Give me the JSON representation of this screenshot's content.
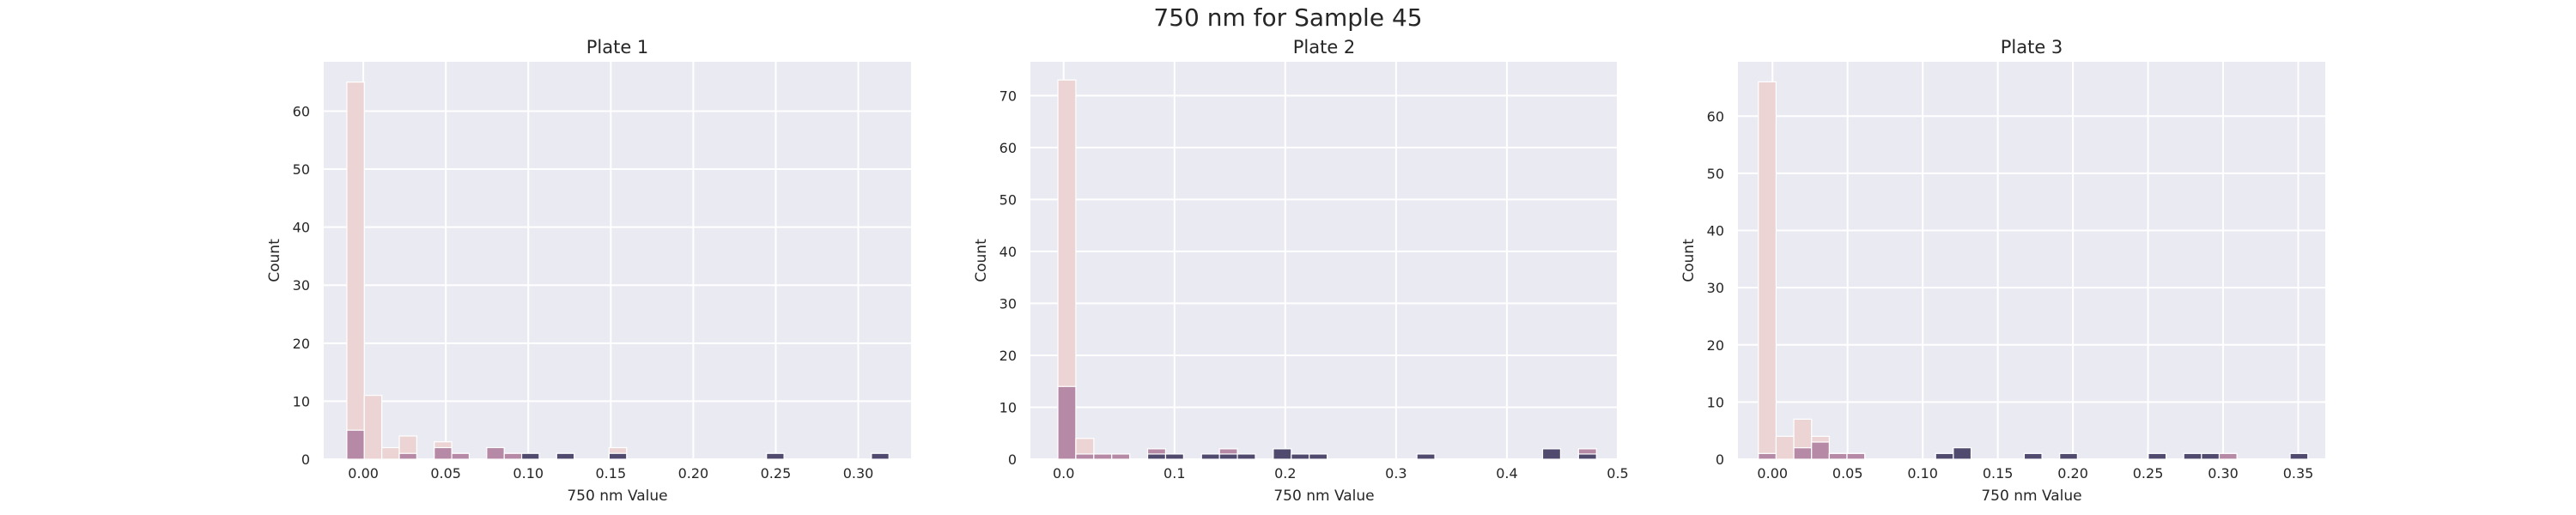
{
  "figure": {
    "suptitle": "750 nm for Sample 45"
  },
  "palette": [
    "#ecd4d4",
    "#b68aa6",
    "#4f4a6e"
  ],
  "chart_data": [
    {
      "type": "bar",
      "title": "Plate 1",
      "xlabel": "750 nm Value",
      "ylabel": "Count",
      "xlim": [
        -0.024,
        0.332
      ],
      "ylim": [
        0,
        68.5
      ],
      "xticks": [
        0.0,
        0.05,
        0.1,
        0.15,
        0.2,
        0.25,
        0.3
      ],
      "xtick_labels": [
        "0.00",
        "0.05",
        "0.10",
        "0.15",
        "0.20",
        "0.25",
        "0.30"
      ],
      "yticks": [
        0,
        10,
        20,
        30,
        40,
        50,
        60
      ],
      "bin_width": 0.0106,
      "grid": true,
      "bars": [
        {
          "x": -0.01,
          "count": 65,
          "shade": 0
        },
        {
          "x": -0.01,
          "count": 5,
          "shade": 1
        },
        {
          "x": 0.0006,
          "count": 11,
          "shade": 0
        },
        {
          "x": 0.0112,
          "count": 2,
          "shade": 0
        },
        {
          "x": 0.0218,
          "count": 4,
          "shade": 0
        },
        {
          "x": 0.0218,
          "count": 1,
          "shade": 1
        },
        {
          "x": 0.043,
          "count": 3,
          "shade": 0
        },
        {
          "x": 0.043,
          "count": 2,
          "shade": 1
        },
        {
          "x": 0.0536,
          "count": 1,
          "shade": 1
        },
        {
          "x": 0.0748,
          "count": 2,
          "shade": 1
        },
        {
          "x": 0.0854,
          "count": 1,
          "shade": 1
        },
        {
          "x": 0.096,
          "count": 1,
          "shade": 2
        },
        {
          "x": 0.1172,
          "count": 1,
          "shade": 2
        },
        {
          "x": 0.149,
          "count": 2,
          "shade": 0
        },
        {
          "x": 0.149,
          "count": 1,
          "shade": 2
        },
        {
          "x": 0.2444,
          "count": 1,
          "shade": 2
        },
        {
          "x": 0.308,
          "count": 1,
          "shade": 2
        }
      ]
    },
    {
      "type": "bar",
      "title": "Plate 2",
      "xlabel": "750 nm Value",
      "ylabel": "Count",
      "xlim": [
        -0.03,
        0.5
      ],
      "ylim": [
        0,
        76.5
      ],
      "xticks": [
        0.0,
        0.1,
        0.2,
        0.3,
        0.4,
        0.5
      ],
      "xtick_labels": [
        "0.0",
        "0.1",
        "0.2",
        "0.3",
        "0.4",
        "0.5"
      ],
      "yticks": [
        0,
        10,
        20,
        30,
        40,
        50,
        60,
        70
      ],
      "bin_width": 0.0162,
      "grid": true,
      "bars": [
        {
          "x": -0.0052,
          "count": 73,
          "shade": 0
        },
        {
          "x": -0.0052,
          "count": 14,
          "shade": 1
        },
        {
          "x": 0.011,
          "count": 4,
          "shade": 0
        },
        {
          "x": 0.011,
          "count": 1,
          "shade": 1
        },
        {
          "x": 0.0272,
          "count": 1,
          "shade": 1
        },
        {
          "x": 0.0434,
          "count": 1,
          "shade": 1
        },
        {
          "x": 0.0758,
          "count": 2,
          "shade": 1
        },
        {
          "x": 0.0758,
          "count": 1,
          "shade": 2
        },
        {
          "x": 0.092,
          "count": 1,
          "shade": 2
        },
        {
          "x": 0.1244,
          "count": 1,
          "shade": 2
        },
        {
          "x": 0.1406,
          "count": 2,
          "shade": 1
        },
        {
          "x": 0.1406,
          "count": 1,
          "shade": 2
        },
        {
          "x": 0.1568,
          "count": 1,
          "shade": 2
        },
        {
          "x": 0.1892,
          "count": 2,
          "shade": 2
        },
        {
          "x": 0.2054,
          "count": 1,
          "shade": 2
        },
        {
          "x": 0.2216,
          "count": 1,
          "shade": 2
        },
        {
          "x": 0.3188,
          "count": 1,
          "shade": 2
        },
        {
          "x": 0.4322,
          "count": 2,
          "shade": 2
        },
        {
          "x": 0.4646,
          "count": 2,
          "shade": 1
        },
        {
          "x": 0.4646,
          "count": 1,
          "shade": 2
        }
      ]
    },
    {
      "type": "bar",
      "title": "Plate 3",
      "xlabel": "750 nm Value",
      "ylabel": "Count",
      "xlim": [
        -0.023,
        0.368
      ],
      "ylim": [
        0,
        69.5
      ],
      "xticks": [
        0.0,
        0.05,
        0.1,
        0.15,
        0.2,
        0.25,
        0.3,
        0.35
      ],
      "xtick_labels": [
        "0.00",
        "0.05",
        "0.10",
        "0.15",
        "0.20",
        "0.25",
        "0.30",
        "0.35"
      ],
      "yticks": [
        0,
        10,
        20,
        30,
        40,
        50,
        60
      ],
      "bin_width": 0.0118,
      "grid": true,
      "bars": [
        {
          "x": -0.0094,
          "count": 66,
          "shade": 0
        },
        {
          "x": -0.0094,
          "count": 1,
          "shade": 1
        },
        {
          "x": 0.0024,
          "count": 4,
          "shade": 0
        },
        {
          "x": 0.0142,
          "count": 7,
          "shade": 0
        },
        {
          "x": 0.0142,
          "count": 2,
          "shade": 1
        },
        {
          "x": 0.026,
          "count": 4,
          "shade": 0
        },
        {
          "x": 0.026,
          "count": 3,
          "shade": 1
        },
        {
          "x": 0.0378,
          "count": 1,
          "shade": 0
        },
        {
          "x": 0.0378,
          "count": 1,
          "shade": 1
        },
        {
          "x": 0.0496,
          "count": 1,
          "shade": 0
        },
        {
          "x": 0.0496,
          "count": 1,
          "shade": 1
        },
        {
          "x": 0.1086,
          "count": 1,
          "shade": 2
        },
        {
          "x": 0.1204,
          "count": 2,
          "shade": 2
        },
        {
          "x": 0.1676,
          "count": 1,
          "shade": 2
        },
        {
          "x": 0.1912,
          "count": 1,
          "shade": 2
        },
        {
          "x": 0.2502,
          "count": 1,
          "shade": 2
        },
        {
          "x": 0.2738,
          "count": 1,
          "shade": 2
        },
        {
          "x": 0.2856,
          "count": 1,
          "shade": 2
        },
        {
          "x": 0.2974,
          "count": 1,
          "shade": 1
        },
        {
          "x": 0.3446,
          "count": 1,
          "shade": 2
        }
      ]
    }
  ]
}
